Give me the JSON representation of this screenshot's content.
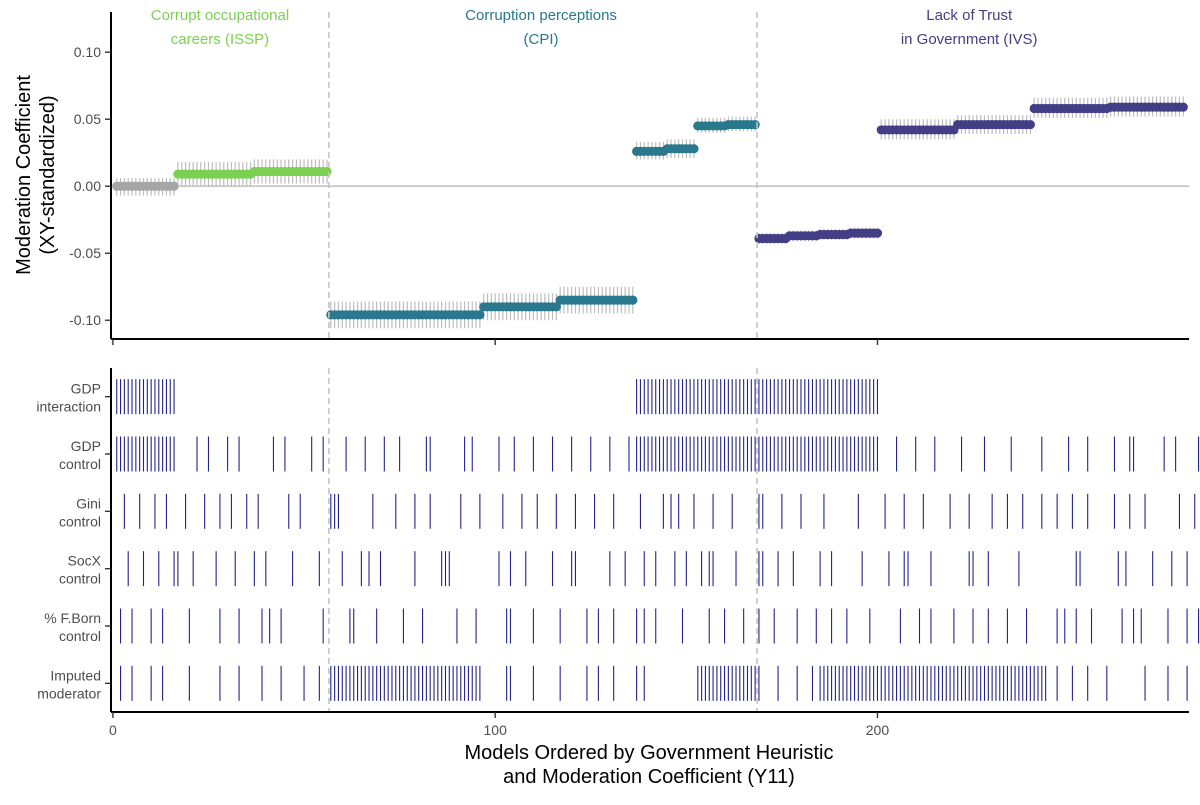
{
  "chart_data": {
    "type": "scatter",
    "x_axis": {
      "label_line1": "Models Ordered by Government Heuristic",
      "label_line2": "and Moderation Coefficient (Y11)",
      "range": [
        -0.5,
        281.5
      ],
      "ticks": [
        {
          "value": 0,
          "label": "0"
        },
        {
          "value": 100,
          "label": "100"
        },
        {
          "value": 200,
          "label": "200"
        }
      ]
    },
    "y_axis": {
      "label_line1": "Moderation Coefficient",
      "label_line2": "(XY-standardized)",
      "range": [
        -0.114,
        0.13
      ],
      "ticks": [
        {
          "value": 0.1,
          "label": "0.10"
        },
        {
          "value": 0.05,
          "label": "0.05"
        },
        {
          "value": 0.0,
          "label": "0.00"
        },
        {
          "value": -0.05,
          "label": "-0.05"
        },
        {
          "value": -0.1,
          "label": "-0.10"
        }
      ]
    },
    "reference_line": 0,
    "dividers": [
      56,
      168
    ],
    "groups": [
      {
        "label_line1": "Corrupt occupational",
        "label_line2": "careers (ISSP)",
        "color": "#7ad151",
        "x_center": 28
      },
      {
        "label_line1": "Corruption perceptions",
        "label_line2": "(CPI)",
        "color": "#2a788e",
        "x_center": 112
      },
      {
        "label_line1": "Lack of Trust",
        "label_line2": "in Government (IVS)",
        "color": "#433e85",
        "x_center": 224
      }
    ],
    "estimate_segments": [
      {
        "group": 0,
        "from": 1,
        "to": 16,
        "estimate": 0.0,
        "lower": -0.007,
        "upper": 0.006,
        "nonsignificant": true
      },
      {
        "group": 0,
        "from": 17,
        "to": 36,
        "estimate": 0.009,
        "lower": 0.0,
        "upper": 0.018
      },
      {
        "group": 0,
        "from": 37,
        "to": 56,
        "estimate": 0.011,
        "lower": 0.002,
        "upper": 0.02
      },
      {
        "group": 1,
        "from": 57,
        "to": 96,
        "estimate": -0.096,
        "lower": -0.106,
        "upper": -0.086
      },
      {
        "group": 1,
        "from": 97,
        "to": 116,
        "estimate": -0.09,
        "lower": -0.1,
        "upper": -0.08
      },
      {
        "group": 1,
        "from": 117,
        "to": 136,
        "estimate": -0.085,
        "lower": -0.095,
        "upper": -0.075
      },
      {
        "group": 1,
        "from": 137,
        "to": 144,
        "estimate": 0.026,
        "lower": 0.02,
        "upper": 0.033
      },
      {
        "group": 1,
        "from": 145,
        "to": 152,
        "estimate": 0.028,
        "lower": 0.021,
        "upper": 0.035
      },
      {
        "group": 1,
        "from": 153,
        "to": 160,
        "estimate": 0.045,
        "lower": 0.04,
        "upper": 0.051
      },
      {
        "group": 1,
        "from": 161,
        "to": 168,
        "estimate": 0.046,
        "lower": 0.041,
        "upper": 0.052
      },
      {
        "group": 2,
        "from": 169,
        "to": 176,
        "estimate": -0.039,
        "lower": -0.043,
        "upper": -0.035
      },
      {
        "group": 2,
        "from": 177,
        "to": 184,
        "estimate": -0.037,
        "lower": -0.041,
        "upper": -0.033
      },
      {
        "group": 2,
        "from": 185,
        "to": 192,
        "estimate": -0.036,
        "lower": -0.04,
        "upper": -0.032
      },
      {
        "group": 2,
        "from": 193,
        "to": 200,
        "estimate": -0.035,
        "lower": -0.039,
        "upper": -0.031
      },
      {
        "group": 2,
        "from": 201,
        "to": 220,
        "estimate": 0.042,
        "lower": 0.035,
        "upper": 0.05
      },
      {
        "group": 2,
        "from": 221,
        "to": 240,
        "estimate": 0.046,
        "lower": 0.039,
        "upper": 0.053
      },
      {
        "group": 2,
        "from": 241,
        "to": 260,
        "estimate": 0.058,
        "lower": 0.051,
        "upper": 0.066
      },
      {
        "group": 2,
        "from": 261,
        "to": 280,
        "estimate": 0.059,
        "lower": 0.052,
        "upper": 0.067
      }
    ],
    "specification_rows": [
      {
        "label_line1": "GDP",
        "label_line2": "interaction",
        "models": [
          1,
          2,
          3,
          4,
          5,
          6,
          7,
          8,
          9,
          10,
          11,
          12,
          13,
          14,
          15,
          16,
          137,
          138,
          139,
          140,
          141,
          142,
          143,
          144,
          145,
          146,
          147,
          148,
          149,
          150,
          151,
          152,
          153,
          154,
          155,
          156,
          157,
          158,
          159,
          160,
          161,
          162,
          163,
          164,
          165,
          166,
          167,
          168,
          169,
          170,
          171,
          172,
          173,
          174,
          175,
          176,
          177,
          178,
          179,
          180,
          181,
          182,
          183,
          184,
          185,
          186,
          187,
          188,
          189,
          190,
          191,
          192,
          193,
          194,
          195,
          196,
          197,
          198,
          199,
          200
        ]
      },
      {
        "label_line1": "GDP",
        "label_line2": "control",
        "models": [
          1,
          2,
          3,
          4,
          5,
          6,
          7,
          8,
          9,
          10,
          11,
          12,
          13,
          14,
          15,
          16,
          22,
          25,
          30,
          33,
          42,
          45,
          52,
          55,
          61,
          66,
          71,
          75,
          82,
          83,
          92,
          94,
          101,
          105,
          110,
          115,
          120,
          125,
          130,
          135,
          137,
          138,
          139,
          140,
          141,
          142,
          143,
          144,
          145,
          146,
          147,
          148,
          149,
          150,
          151,
          152,
          153,
          154,
          155,
          156,
          157,
          158,
          159,
          160,
          161,
          162,
          163,
          164,
          165,
          166,
          167,
          168,
          169,
          170,
          171,
          172,
          173,
          174,
          175,
          176,
          177,
          178,
          179,
          180,
          181,
          182,
          183,
          184,
          185,
          186,
          187,
          188,
          189,
          190,
          191,
          192,
          193,
          194,
          195,
          196,
          197,
          198,
          199,
          200,
          205,
          210,
          215,
          222,
          228,
          235,
          243,
          250,
          255,
          262,
          266,
          267,
          275,
          278,
          284,
          285
        ]
      },
      {
        "label_line1": "Gini",
        "label_line2": "control",
        "models": [
          3,
          7,
          11,
          14,
          19,
          24,
          28,
          31,
          35,
          38,
          46,
          49,
          57,
          58,
          59,
          68,
          74,
          79,
          83,
          91,
          96,
          102,
          107,
          111,
          116,
          121,
          126,
          131,
          138,
          144,
          146,
          148,
          152,
          157,
          162,
          169,
          170,
          175,
          180,
          186,
          195,
          202,
          207,
          212,
          219,
          224,
          230,
          234,
          238,
          243,
          247,
          251,
          255,
          262,
          266,
          270,
          279,
          283
        ]
      },
      {
        "label_line1": "SocX",
        "label_line2": "control",
        "models": [
          4,
          8,
          12,
          16,
          17,
          21,
          27,
          32,
          37,
          40,
          47,
          54,
          60,
          65,
          67,
          70,
          79,
          86,
          87,
          88,
          101,
          104,
          108,
          115,
          120,
          121,
          130,
          134,
          139,
          142,
          147,
          150,
          154,
          156,
          157,
          163,
          169,
          170,
          174,
          178,
          185,
          188,
          196,
          203,
          207,
          208,
          214,
          224,
          225,
          229,
          237,
          252,
          253,
          263,
          265,
          272,
          277,
          281
        ]
      },
      {
        "label_line1": "% F.Born",
        "label_line2": "control",
        "models": [
          2,
          5,
          10,
          13,
          20,
          28,
          33,
          39,
          41,
          44,
          55,
          62,
          63,
          69,
          76,
          81,
          90,
          95,
          103,
          104,
          110,
          117,
          124,
          127,
          131,
          137,
          139,
          142,
          149,
          156,
          160,
          165,
          169,
          173,
          179,
          184,
          188,
          192,
          198,
          206,
          211,
          214,
          220,
          225,
          229,
          234,
          239,
          247,
          249,
          252,
          256,
          264,
          267,
          269,
          276,
          281,
          284
        ]
      },
      {
        "label_line1": "Imputed",
        "label_line2": "moderator",
        "models": [
          2,
          5,
          10,
          13,
          20,
          28,
          33,
          39,
          44,
          50,
          54,
          57,
          58,
          59,
          60,
          61,
          62,
          63,
          64,
          65,
          66,
          67,
          68,
          69,
          70,
          71,
          72,
          73,
          74,
          75,
          76,
          77,
          78,
          79,
          80,
          81,
          82,
          83,
          84,
          85,
          86,
          87,
          88,
          89,
          90,
          91,
          92,
          93,
          94,
          95,
          96,
          103,
          104,
          110,
          117,
          124,
          127,
          131,
          137,
          139,
          153,
          154,
          155,
          156,
          157,
          158,
          159,
          160,
          161,
          162,
          163,
          164,
          165,
          166,
          167,
          168,
          169,
          174,
          179,
          183,
          185,
          186,
          187,
          188,
          189,
          190,
          191,
          192,
          193,
          194,
          195,
          196,
          197,
          198,
          199,
          200,
          201,
          202,
          203,
          204,
          205,
          206,
          207,
          208,
          209,
          210,
          211,
          212,
          213,
          214,
          215,
          216,
          217,
          218,
          219,
          220,
          221,
          222,
          223,
          224,
          225,
          226,
          227,
          228,
          229,
          230,
          231,
          232,
          233,
          234,
          235,
          236,
          237,
          238,
          239,
          240,
          241,
          242,
          243,
          244,
          247,
          251,
          255,
          260,
          270,
          276,
          281
        ]
      }
    ],
    "colors": {
      "ci_whisker": "#bdbdbd",
      "nonsignificant_point": "#a6a6a6",
      "reference_line": "#c4c4c4",
      "divider": "#c4c4c4",
      "spec_tick": "#23238e",
      "axis": "#000000"
    }
  }
}
